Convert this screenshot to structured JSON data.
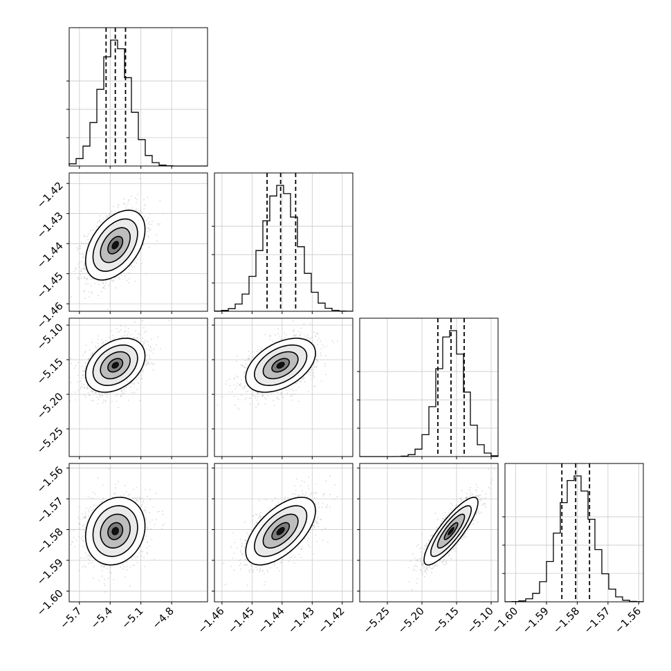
{
  "chart_data": {
    "type": "corner",
    "n_params": 4,
    "grid": true,
    "parameters": [
      {
        "range": [
          -5.8,
          -4.45
        ],
        "ticks": [
          -5.7,
          -5.4,
          -5.1,
          -4.8
        ],
        "tick_labels": [
          "−5.7",
          "−5.4",
          "−5.1",
          "−4.8"
        ],
        "median": -5.35,
        "q16": -5.44,
        "q84": -5.25,
        "sigma": 0.145
      },
      {
        "range": [
          -1.4625,
          -1.4165
        ],
        "ticks": [
          -1.46,
          -1.45,
          -1.44,
          -1.43,
          -1.42
        ],
        "tick_labels": [
          "−1.46",
          "−1.45",
          "−1.44",
          "−1.43",
          "−1.42"
        ],
        "median": -1.4405,
        "q16": -1.445,
        "q84": -1.4355,
        "sigma": 0.0058
      },
      {
        "range": [
          -5.29,
          -5.09
        ],
        "ticks": [
          -5.25,
          -5.2,
          -5.15,
          -5.1
        ],
        "tick_labels": [
          "−5.25",
          "−5.20",
          "−5.15",
          "−5.10"
        ],
        "median": -5.158,
        "q16": -5.177,
        "q84": -5.139,
        "sigma": 0.0195
      },
      {
        "range": [
          -1.6035,
          -1.5585
        ],
        "ticks": [
          -1.6,
          -1.59,
          -1.58,
          -1.57,
          -1.56
        ],
        "tick_labels": [
          "−1.60",
          "−1.59",
          "−1.58",
          "−1.57",
          "−1.56"
        ],
        "median": -1.5805,
        "q16": -1.585,
        "q84": -1.576,
        "sigma": 0.0055
      }
    ],
    "correlations": [
      {
        "i": 1,
        "j": 0,
        "rho": 0.45
      },
      {
        "i": 2,
        "j": 0,
        "rho": 0.35
      },
      {
        "i": 2,
        "j": 1,
        "rho": 0.45
      },
      {
        "i": 3,
        "j": 0,
        "rho": 0.15
      },
      {
        "i": 3,
        "j": 1,
        "rho": 0.6
      },
      {
        "i": 3,
        "j": 2,
        "rho": 0.85
      }
    ],
    "contour_levels_sigma": [
      0.5,
      1.0,
      1.5,
      2.0
    ],
    "quantile_line_style": "dashed",
    "colors": {
      "histogram": "#000000",
      "contour": "#000000",
      "grid": "#c8c8c8",
      "points": "#b4b4b4"
    }
  }
}
